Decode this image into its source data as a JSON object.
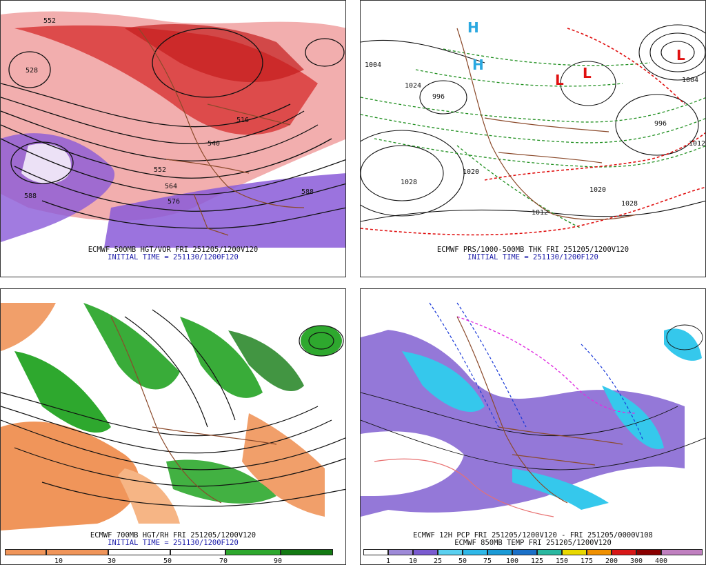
{
  "panels": [
    {
      "id": "p1",
      "title": "ECMWF 500MB HGT/VOR FRI 251205/1200V120",
      "init": "INITIAL TIME = 251130/1200F120",
      "contour_labels": [
        "552",
        "516",
        "528",
        "540",
        "552",
        "564",
        "576",
        "588",
        "588"
      ]
    },
    {
      "id": "p2",
      "title": "ECMWF PRS/1000-500MB THK FRI 251205/1200V120",
      "init": "INITIAL TIME = 251130/1200F120",
      "contour_labels": [
        "1004",
        "1024",
        "1012",
        "1028",
        "1020",
        "1020",
        "996",
        "996",
        "1004",
        "1012",
        "1028"
      ],
      "high_low": [
        "H",
        "H",
        "L",
        "L",
        "L"
      ]
    },
    {
      "id": "p3",
      "title": "ECMWF 700MB HGT/RH FRI 251205/1200V120",
      "init": "INITIAL TIME = 251130/1200F120",
      "colorbar": {
        "labels": [
          "10",
          "30",
          "50",
          "70",
          "90"
        ],
        "colors": [
          "#ffffff",
          "#f0955a",
          "#f6b585",
          "#ffffff",
          "#ffffff",
          "#6cd86c",
          "#2ea82e",
          "#137a13"
        ]
      }
    },
    {
      "id": "p4",
      "title": "ECMWF 12H PCP FRI 251205/1200V120 - FRI 251205/0000V108",
      "title2": "ECMWF 850MB TEMP FRI 251205/1200V120",
      "colorbar": {
        "labels": [
          "1",
          "10",
          "25",
          "50",
          "75",
          "100",
          "125",
          "150",
          "175",
          "200",
          "300",
          "400"
        ],
        "colors": [
          "#ffffff",
          "#9e8ad8",
          "#7a5bd0",
          "#5ad0f0",
          "#2fb8e8",
          "#1a9ad6",
          "#1a70c8",
          "#2ab8a0",
          "#e8d800",
          "#f09000",
          "#d81818",
          "#8a0000",
          "#c080c0"
        ]
      }
    }
  ],
  "colors": {
    "vorticity_red": "#d62a2a",
    "vorticity_pink": "#f28a8a",
    "vorticity_purple": "#8a5ad8",
    "height_contour": "#111111",
    "map_border": "#8b4a2b",
    "thickness_green": "#1f8f1f",
    "thickness_red": "#e01010",
    "rh_orange": "#f0955a",
    "rh_green": "#2ea82e",
    "pcp_purple": "#9478d8",
    "pcp_cyan": "#35c8ec",
    "temp_blue": "#1a3ad8",
    "temp_magenta": "#e030e0",
    "title_blue": "#1a1aa8"
  }
}
